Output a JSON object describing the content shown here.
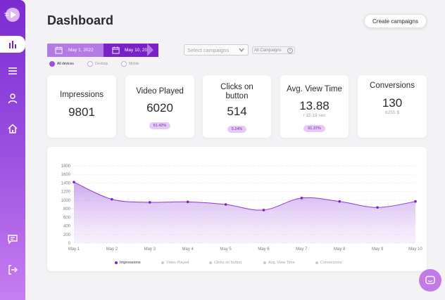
{
  "sidebar": {
    "icons": [
      "logo-play-icon",
      "bar-chart-icon",
      "menu-icon",
      "user-icon",
      "home-icon",
      "chat-icon",
      "logout-icon"
    ]
  },
  "header": {
    "title": "Dashboard",
    "create_label": "Create campaigns"
  },
  "filters": {
    "date_from": "May 1, 2022",
    "date_to": "May 10, 2022",
    "devices": [
      "All devices",
      "Desktop",
      "Mobile"
    ],
    "selected_device": "All devices",
    "campaign_placeholder": "Select campaigns",
    "campaign_chip": "All Campaigns"
  },
  "cards": [
    {
      "title": "Impressions",
      "value": "9801",
      "sub": "",
      "badge": ""
    },
    {
      "title": "Video Played",
      "value": "6020",
      "sub": "",
      "badge": "61.42%"
    },
    {
      "title": "Clicks on button",
      "value": "514",
      "sub": "",
      "badge": "5.24%"
    },
    {
      "title": "Avg. View Time",
      "value": "13.88",
      "sub": "/ 15.19 sec",
      "badge": "91.37%"
    },
    {
      "title": "Conversions",
      "value": "130",
      "sub": "6255 $",
      "badge": ""
    }
  ],
  "colors": {
    "accent": "#7a22c8",
    "accent_light": "#b47ae6",
    "sidebar_top": "#7b2bd1",
    "sidebar_bottom": "#c77ef0"
  },
  "chart_data": {
    "type": "area",
    "x": [
      "May 1",
      "May 2",
      "May 3",
      "May 4",
      "May 5",
      "May 6",
      "May 7",
      "May 8",
      "May 9",
      "May 10"
    ],
    "series": [
      {
        "name": "Impressions",
        "values": [
          1420,
          1020,
          950,
          960,
          900,
          770,
          1050,
          970,
          830,
          970
        ]
      }
    ],
    "ylim": [
      0,
      1800
    ],
    "yticks": [
      0,
      200,
      400,
      600,
      800,
      1000,
      1200,
      1400,
      1600,
      1800
    ],
    "grid": true,
    "legend": [
      "Impressions",
      "Video Played",
      "Clicks on button",
      "Avg. View Time",
      "Conversions"
    ],
    "legend_active": "Impressions",
    "legend_position": "bottom"
  }
}
